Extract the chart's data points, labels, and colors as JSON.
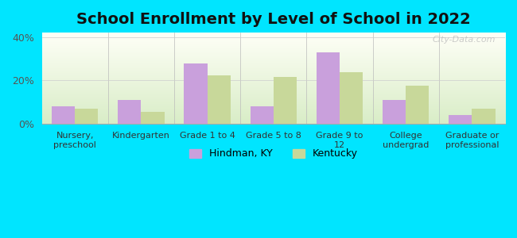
{
  "title": "School Enrollment by Level of School in 2022",
  "categories": [
    "Nursery,\npreschool",
    "Kindergarten",
    "Grade 1 to 4",
    "Grade 5 to 8",
    "Grade 9 to\n12",
    "College\nundergrad",
    "Graduate or\nprofessional"
  ],
  "hindman_values": [
    8.0,
    11.0,
    28.0,
    8.0,
    33.0,
    11.0,
    4.0
  ],
  "kentucky_values": [
    7.0,
    5.5,
    22.5,
    21.5,
    24.0,
    17.5,
    7.0
  ],
  "hindman_color": "#c9a0dc",
  "kentucky_color": "#c8d89a",
  "bar_width": 0.35,
  "ylim": [
    0,
    42
  ],
  "yticks": [
    0,
    20,
    40
  ],
  "ytick_labels": [
    "0%",
    "20%",
    "40%"
  ],
  "background_outer": "#00e5ff",
  "legend_labels": [
    "Hindman, KY",
    "Kentucky"
  ],
  "title_fontsize": 14,
  "watermark": "City-Data.com"
}
